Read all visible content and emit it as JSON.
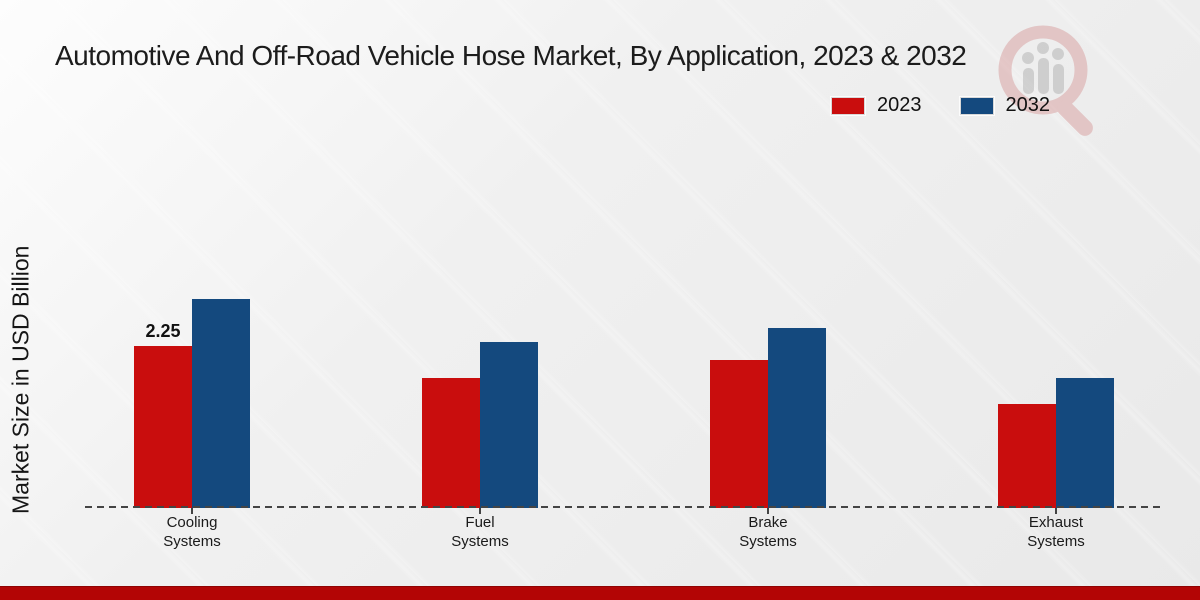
{
  "title": "Automotive And Off-Road Vehicle Hose Market, By Application, 2023 & 2032",
  "ylabel": "Market Size in USD Billion",
  "accent_colors": {
    "series_2023": "#c90d0d",
    "series_2032": "#14497e",
    "footer_bar": "#b30505"
  },
  "chart_data": {
    "type": "bar",
    "categories": [
      "Cooling Systems",
      "Fuel Systems",
      "Brake Systems",
      "Exhaust Systems"
    ],
    "category_lines": [
      [
        "Cooling",
        "Systems"
      ],
      [
        "Fuel",
        "Systems"
      ],
      [
        "Brake",
        "Systems"
      ],
      [
        "Exhaust",
        "Systems"
      ]
    ],
    "series": [
      {
        "name": "2023",
        "color": "#c90d0d",
        "values": [
          2.25,
          1.8,
          2.05,
          1.45
        ]
      },
      {
        "name": "2032",
        "color": "#14497e",
        "values": [
          2.9,
          2.3,
          2.5,
          1.8
        ]
      }
    ],
    "bar_label": {
      "series_index": 0,
      "category_index": 0,
      "text": "2.25"
    },
    "unit": "USD Billion",
    "ylim": [
      0,
      3.3
    ],
    "grid": false,
    "legend_position": "top-right",
    "baseline_style": "dashed"
  },
  "watermark": {
    "name": "market-research-magnifier-logo"
  }
}
